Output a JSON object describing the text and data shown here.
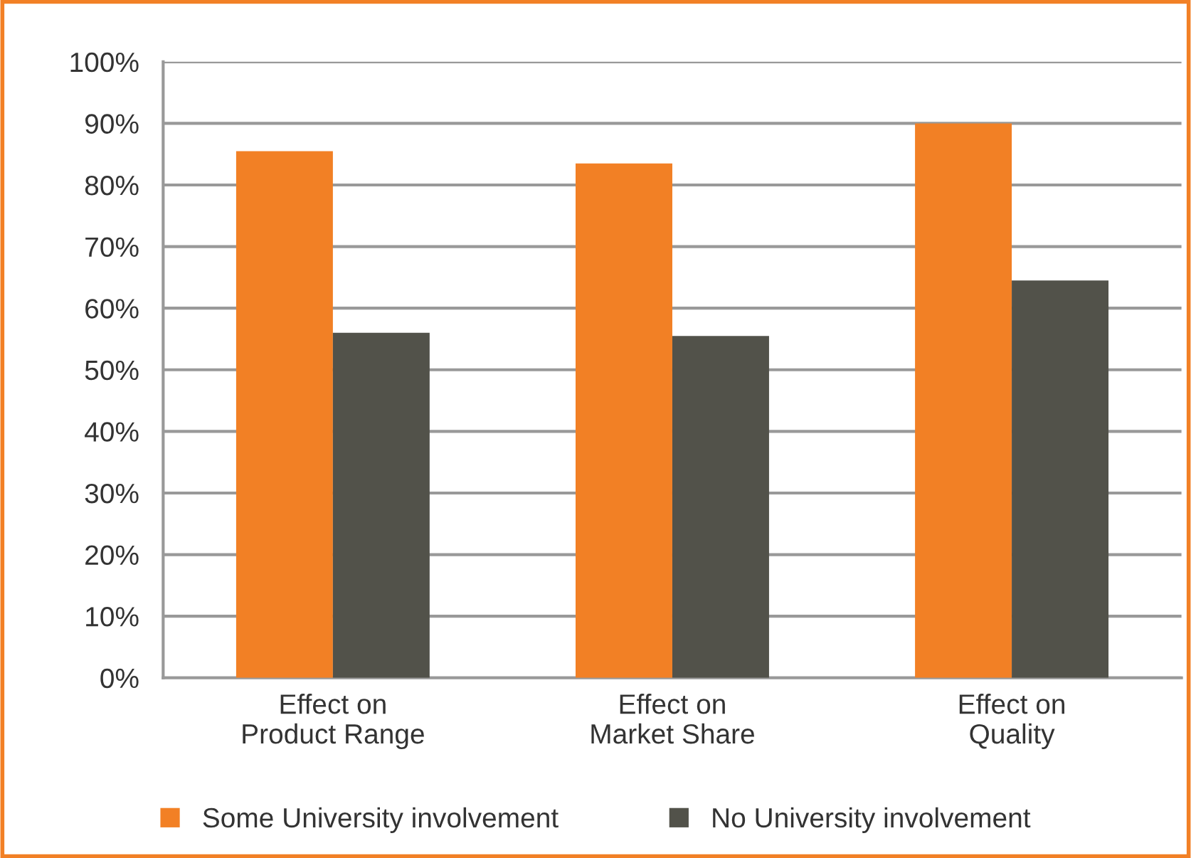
{
  "chart_data": {
    "type": "bar",
    "categories": [
      "Effect on\nProduct Range",
      "Effect on\nMarket Share",
      "Effect on\nQuality"
    ],
    "series": [
      {
        "name": "Some University involvement",
        "color": "#f28025",
        "values": [
          85.5,
          83.5,
          90
        ]
      },
      {
        "name": "No University involvement",
        "color": "#52524a",
        "values": [
          56,
          55.5,
          64.5
        ]
      }
    ],
    "ylim": [
      0,
      100
    ],
    "yticks": [
      {
        "value": 0,
        "label": "0%"
      },
      {
        "value": 10,
        "label": "10%"
      },
      {
        "value": 20,
        "label": "20%"
      },
      {
        "value": 30,
        "label": "30%"
      },
      {
        "value": 40,
        "label": "40%"
      },
      {
        "value": 50,
        "label": "50%"
      },
      {
        "value": 60,
        "label": "60%"
      },
      {
        "value": 70,
        "label": "70%"
      },
      {
        "value": 80,
        "label": "80%"
      },
      {
        "value": 90,
        "label": "90%"
      },
      {
        "value": 100,
        "label": "100%"
      }
    ],
    "grid": "y",
    "legend": "bottom"
  }
}
